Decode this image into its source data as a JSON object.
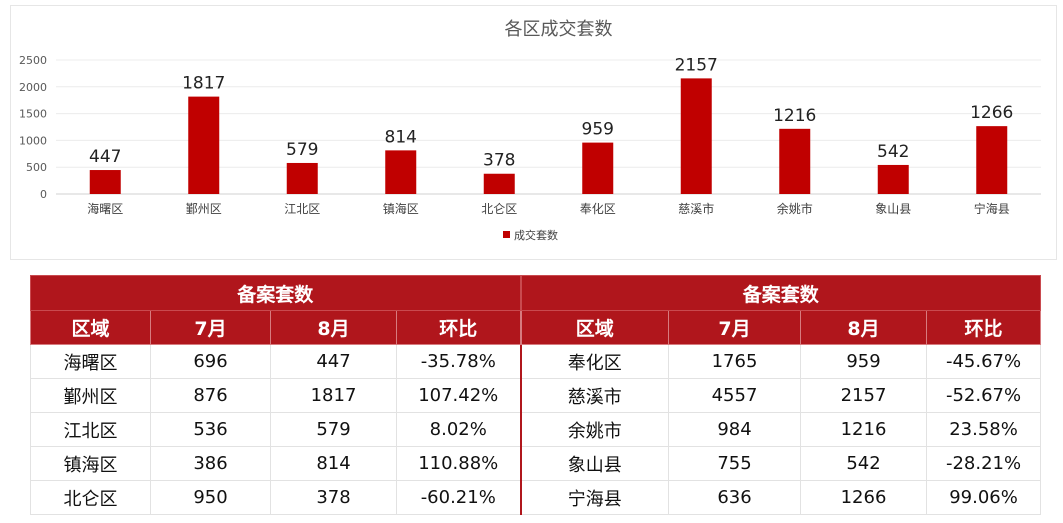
{
  "chart_data": {
    "type": "bar",
    "title": "各区成交套数",
    "categories": [
      "海曙区",
      "鄞州区",
      "江北区",
      "镇海区",
      "北仑区",
      "奉化区",
      "慈溪市",
      "余姚市",
      "象山县",
      "宁海县"
    ],
    "series": [
      {
        "name": "成交套数",
        "values": [
          447,
          1817,
          579,
          814,
          378,
          959,
          2157,
          1216,
          542,
          1266
        ],
        "color": "#c00000"
      }
    ],
    "ylim": [
      0,
      2500
    ],
    "yticks": [
      0,
      500,
      1000,
      1500,
      2000,
      2500
    ],
    "grid": true,
    "legend": "bottom"
  },
  "table": {
    "group_header_left": "备案套数",
    "group_header_right": "备案套数",
    "columns": [
      "区域",
      "7月",
      "8月",
      "环比",
      "区域",
      "7月",
      "8月",
      "环比"
    ],
    "rows": [
      [
        "海曙区",
        "696",
        "447",
        "-35.78%",
        "奉化区",
        "1765",
        "959",
        "-45.67%"
      ],
      [
        "鄞州区",
        "876",
        "1817",
        "107.42%",
        "慈溪市",
        "4557",
        "2157",
        "-52.67%"
      ],
      [
        "江北区",
        "536",
        "579",
        "8.02%",
        "余姚市",
        "984",
        "1216",
        "23.58%"
      ],
      [
        "镇海区",
        "386",
        "814",
        "110.88%",
        "象山县",
        "755",
        "542",
        "-28.21%"
      ],
      [
        "北仑区",
        "950",
        "378",
        "-60.21%",
        "宁海县",
        "636",
        "1266",
        "99.06%"
      ]
    ]
  },
  "colors": {
    "accent": "#b0161c",
    "bar": "#c00000"
  }
}
